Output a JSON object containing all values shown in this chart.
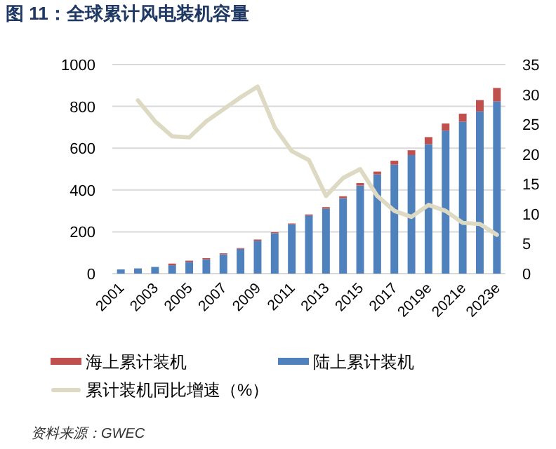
{
  "chart_data": {
    "type": "bar",
    "title": "图 11：全球累计风电装机容量",
    "categories": [
      "2001",
      null,
      "2003",
      null,
      "2005",
      null,
      "2007",
      null,
      "2009",
      null,
      "2011",
      null,
      "2013",
      null,
      "2015",
      null,
      "2017",
      null,
      "2019e",
      null,
      "2021e",
      null,
      "2023e"
    ],
    "stacked": true,
    "series": [
      {
        "name": "陆上累计装机",
        "color": "#4f81bd",
        "values": [
          20,
          25,
          32,
          40,
          56,
          68,
          92,
          118,
          157,
          193,
          236,
          278,
          311,
          361,
          421,
          474,
          521,
          567,
          619,
          684,
          727,
          776,
          823
        ]
      },
      {
        "name": "海上累计装机",
        "color": "#c0504d",
        "values": [
          0,
          0,
          0,
          8,
          6,
          6,
          5,
          4,
          6,
          5,
          4,
          5,
          7,
          9,
          12,
          14,
          19,
          23,
          34,
          34,
          38,
          54,
          65
        ]
      },
      {
        "name": "累计装机同比增速（%）",
        "type": "line",
        "axis": "y2",
        "color": "#ddd9c3",
        "values": [
          null,
          29,
          25.5,
          23,
          22.8,
          25.5,
          27.5,
          29.5,
          31.3,
          24.5,
          20.5,
          19,
          13,
          16,
          17.5,
          13,
          10.5,
          9.5,
          11.5,
          10.5,
          8.5,
          8.3,
          6.5
        ]
      }
    ],
    "ylim": [
      0,
      1000
    ],
    "yticks": [
      0,
      200,
      400,
      600,
      800,
      1000
    ],
    "y2lim": [
      0,
      35
    ],
    "y2ticks": [
      0,
      5,
      10,
      15,
      20,
      25,
      30,
      35
    ],
    "grid": "y",
    "legend": "bottom",
    "annotations": [
      "资料来源：GWEC"
    ]
  }
}
